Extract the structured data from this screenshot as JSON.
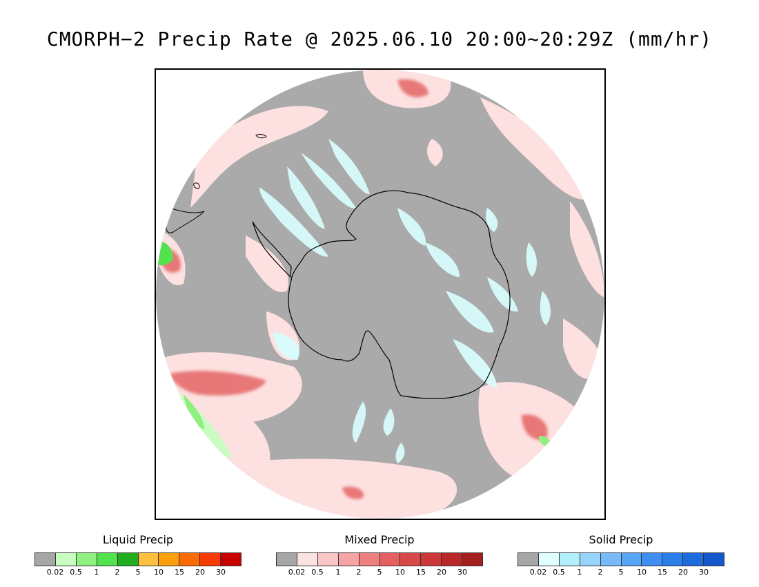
{
  "title": "CMORPH−2 Precip Rate @ 2025.06.10 20:00~20:29Z (mm/hr)",
  "map": {
    "projection": "south-polar-stereographic",
    "background_color": "#aaaaaa",
    "coastline_color": "#000000"
  },
  "legends": [
    {
      "id": "liquid",
      "title": "Liquid Precip",
      "colors": [
        "#a6a6a6",
        "#c8fcc0",
        "#8fef80",
        "#52e24e",
        "#21ad1e",
        "#fcc03e",
        "#fba00c",
        "#fa6b05",
        "#f83a03",
        "#c80000"
      ],
      "ticks": [
        "0.02",
        "0.5",
        "1",
        "2",
        "5",
        "10",
        "15",
        "20",
        "30"
      ]
    },
    {
      "id": "mixed",
      "title": "Mixed Precip",
      "colors": [
        "#a6a6a6",
        "#fde2e2",
        "#fac5c5",
        "#f5a3a3",
        "#ef8080",
        "#e56060",
        "#d94848",
        "#cc3838",
        "#b82828",
        "#a42020"
      ],
      "ticks": [
        "0.02",
        "0.5",
        "1",
        "2",
        "5",
        "10",
        "15",
        "20",
        "30"
      ]
    },
    {
      "id": "solid",
      "title": "Solid Precip",
      "colors": [
        "#a6a6a6",
        "#e0ffff",
        "#b4f0fb",
        "#98d3fa",
        "#78b9f8",
        "#58a4f6",
        "#3e8ff1",
        "#2b7de9",
        "#1e6bde",
        "#1558cc"
      ],
      "ticks": [
        "0.02",
        "0.5",
        "1",
        "2",
        "5",
        "10",
        "15",
        "20",
        "30"
      ]
    }
  ]
}
